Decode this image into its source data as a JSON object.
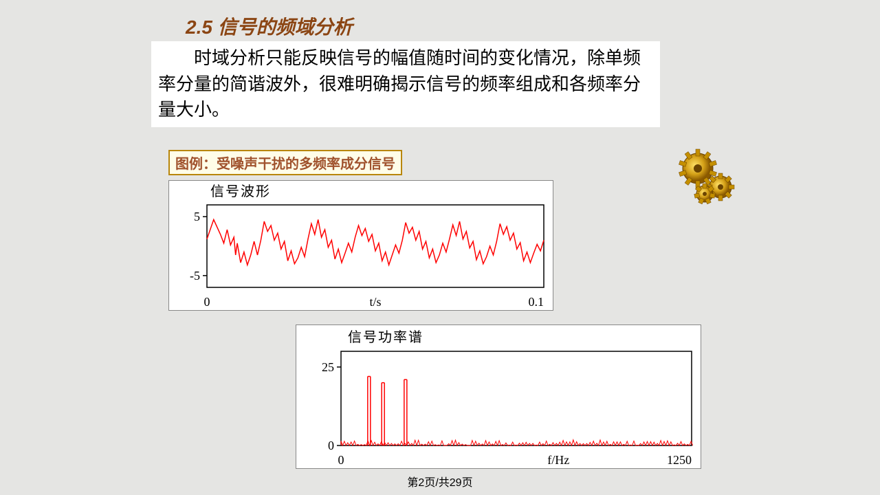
{
  "title": "2.5 信号的频域分析",
  "body_text": "时域分析只能反映信号的幅值随时间的变化情况，除单频率分量的简谐波外，很难明确揭示信号的频率组成和各频率分量大小。",
  "caption": "图例：受噪声干扰的多频率成分信号",
  "page_number": "第2页/共29页",
  "chart_time": {
    "type": "line",
    "title": "信号波形",
    "title_fontsize": 20,
    "xlabel": "t/s",
    "xlim": [
      0,
      0.1
    ],
    "xtick_labels": [
      "0",
      "0.1"
    ],
    "ylim": [
      -7,
      7
    ],
    "yticks": [
      -5,
      5
    ],
    "ytick_labels": [
      "-5",
      "5"
    ],
    "line_color": "#ff0000",
    "line_width": 1.5,
    "axis_color": "#000000",
    "background_color": "#ffffff",
    "data_points": [
      [
        0.0,
        1.2
      ],
      [
        0.002,
        4.5
      ],
      [
        0.004,
        2.0
      ],
      [
        0.005,
        0.5
      ],
      [
        0.006,
        2.8
      ],
      [
        0.007,
        0.2
      ],
      [
        0.008,
        1.5
      ],
      [
        0.0085,
        -1.5
      ],
      [
        0.009,
        0.5
      ],
      [
        0.01,
        -2.8
      ],
      [
        0.011,
        -1.0
      ],
      [
        0.012,
        -3.2
      ],
      [
        0.013,
        -1.5
      ],
      [
        0.014,
        0.8
      ],
      [
        0.015,
        -1.5
      ],
      [
        0.016,
        1.0
      ],
      [
        0.017,
        4.2
      ],
      [
        0.018,
        2.5
      ],
      [
        0.019,
        3.5
      ],
      [
        0.02,
        1.0
      ],
      [
        0.021,
        2.2
      ],
      [
        0.022,
        -0.5
      ],
      [
        0.023,
        0.8
      ],
      [
        0.024,
        -2.5
      ],
      [
        0.025,
        -0.8
      ],
      [
        0.026,
        -3.0
      ],
      [
        0.027,
        -2.0
      ],
      [
        0.028,
        -0.2
      ],
      [
        0.029,
        -1.8
      ],
      [
        0.03,
        1.2
      ],
      [
        0.031,
        3.8
      ],
      [
        0.032,
        2.0
      ],
      [
        0.033,
        4.5
      ],
      [
        0.034,
        1.5
      ],
      [
        0.035,
        2.8
      ],
      [
        0.036,
        -0.2
      ],
      [
        0.037,
        1.0
      ],
      [
        0.038,
        -2.2
      ],
      [
        0.039,
        -0.5
      ],
      [
        0.04,
        -2.8
      ],
      [
        0.041,
        -1.2
      ],
      [
        0.042,
        0.5
      ],
      [
        0.043,
        -1.0
      ],
      [
        0.044,
        1.5
      ],
      [
        0.045,
        3.5
      ],
      [
        0.046,
        1.8
      ],
      [
        0.047,
        3.0
      ],
      [
        0.048,
        0.8
      ],
      [
        0.049,
        2.0
      ],
      [
        0.05,
        -0.8
      ],
      [
        0.051,
        0.5
      ],
      [
        0.052,
        -2.5
      ],
      [
        0.053,
        -1.0
      ],
      [
        0.054,
        -3.2
      ],
      [
        0.055,
        -1.5
      ],
      [
        0.056,
        0.2
      ],
      [
        0.057,
        -1.2
      ],
      [
        0.058,
        1.0
      ],
      [
        0.059,
        4.0
      ],
      [
        0.06,
        2.2
      ],
      [
        0.061,
        3.2
      ],
      [
        0.062,
        1.0
      ],
      [
        0.063,
        2.5
      ],
      [
        0.064,
        -0.5
      ],
      [
        0.065,
        0.8
      ],
      [
        0.066,
        -2.0
      ],
      [
        0.067,
        -0.5
      ],
      [
        0.068,
        -2.8
      ],
      [
        0.069,
        -1.5
      ],
      [
        0.07,
        0.5
      ],
      [
        0.071,
        -1.0
      ],
      [
        0.072,
        1.2
      ],
      [
        0.073,
        3.6
      ],
      [
        0.074,
        1.8
      ],
      [
        0.075,
        4.2
      ],
      [
        0.076,
        1.2
      ],
      [
        0.077,
        2.5
      ],
      [
        0.078,
        -0.3
      ],
      [
        0.079,
        0.8
      ],
      [
        0.08,
        -2.3
      ],
      [
        0.081,
        -0.8
      ],
      [
        0.082,
        -3.0
      ],
      [
        0.083,
        -1.8
      ],
      [
        0.084,
        0.0
      ],
      [
        0.085,
        -1.5
      ],
      [
        0.086,
        0.8
      ],
      [
        0.087,
        3.8
      ],
      [
        0.088,
        2.0
      ],
      [
        0.089,
        3.3
      ],
      [
        0.09,
        1.0
      ],
      [
        0.091,
        2.2
      ],
      [
        0.092,
        -0.5
      ],
      [
        0.093,
        0.6
      ],
      [
        0.094,
        -2.5
      ],
      [
        0.095,
        -1.0
      ],
      [
        0.096,
        -2.8
      ],
      [
        0.097,
        -1.2
      ],
      [
        0.098,
        0.3
      ],
      [
        0.099,
        -0.8
      ],
      [
        0.1,
        1.0
      ]
    ]
  },
  "chart_freq": {
    "type": "spectrum",
    "title": "信号功率谱",
    "title_fontsize": 20,
    "xlabel": "f/Hz",
    "xlim": [
      0,
      1250
    ],
    "xtick_labels": [
      "0",
      "1250"
    ],
    "ylim": [
      0,
      30
    ],
    "yticks": [
      0,
      25
    ],
    "ytick_labels": [
      "0",
      "25"
    ],
    "line_color": "#ff0000",
    "line_width": 1.5,
    "axis_color": "#000000",
    "background_color": "#ffffff",
    "peaks": [
      {
        "f": 100,
        "h": 22
      },
      {
        "f": 150,
        "h": 20
      },
      {
        "f": 230,
        "h": 21
      }
    ],
    "noise_floor": 1.2
  },
  "gears": {
    "color_main": "#d4a017",
    "color_dark": "#8b5a00",
    "color_light": "#ffcc33"
  }
}
